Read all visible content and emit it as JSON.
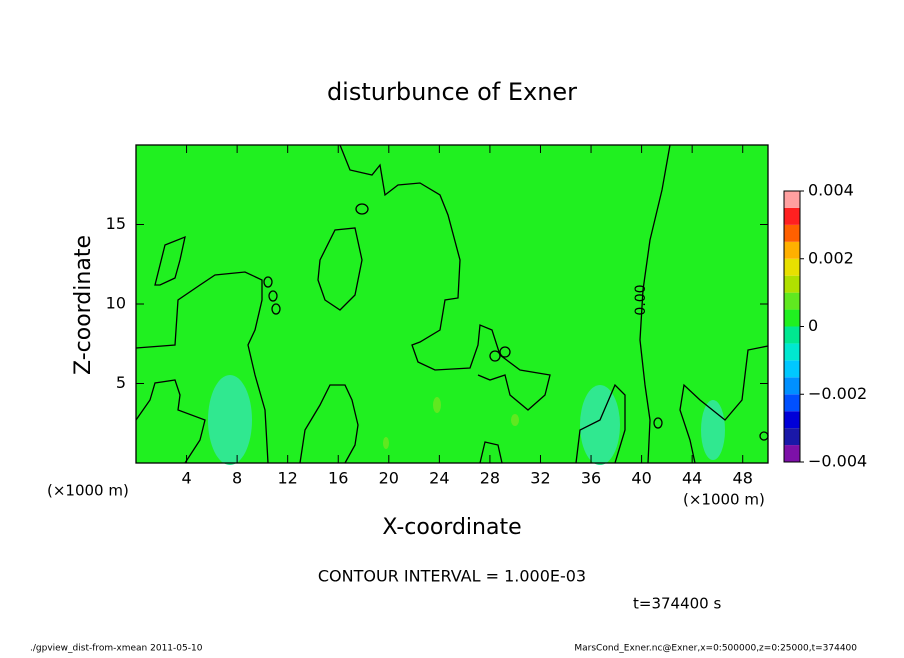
{
  "chart_data": {
    "type": "contour",
    "title": "disturbunce of Exner",
    "x_label": "X-coordinate",
    "y_label": "Z-coordinate",
    "x_unit": "(×1000 m)",
    "xlim": [
      0,
      50
    ],
    "xticks": [
      4,
      8,
      12,
      16,
      20,
      24,
      28,
      32,
      36,
      40,
      44,
      48
    ],
    "ylim": [
      0,
      20
    ],
    "yticks": [
      5,
      10,
      15
    ],
    "contour_label": "0.00",
    "contour_interval": "CONTOUR INTERVAL = 1.000E-03",
    "time": "t=374400 s",
    "footer_left": "./gpview_dist-from-xmean  2011-05-10",
    "footer_right": "MarsCond_Exner.nc@Exner,x=0:500000,z=0:25000,t=374400",
    "colorbar": {
      "lim": [
        -0.004,
        0.004
      ],
      "ticks": [
        {
          "value": -0.004,
          "label": "−0.004"
        },
        {
          "value": -0.002,
          "label": "−0.002"
        },
        0,
        0.002,
        0.004
      ],
      "colors": [
        "#7d10a8",
        "#1a18a8",
        "#0000d8",
        "#0050ff",
        "#0090ff",
        "#00c8ff",
        "#00e8d0",
        "#00e890",
        "#20f020",
        "#60e820",
        "#b0e000",
        "#e8e000",
        "#ffb000",
        "#ff6000",
        "#ff2020",
        "#ffa0a0"
      ]
    }
  }
}
